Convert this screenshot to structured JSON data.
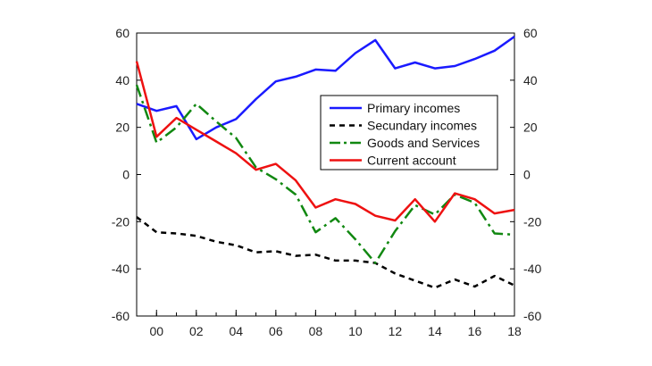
{
  "chart_data": {
    "type": "line",
    "title": "",
    "xlabel": "",
    "ylabel": "",
    "x": [
      1999,
      2000,
      2001,
      2002,
      2003,
      2004,
      2005,
      2006,
      2007,
      2008,
      2009,
      2010,
      2011,
      2012,
      2013,
      2014,
      2015,
      2016,
      2017,
      2018
    ],
    "x_tick_values": [
      2000,
      2002,
      2004,
      2006,
      2008,
      2010,
      2012,
      2014,
      2016,
      2018
    ],
    "x_tick_labels": [
      "00",
      "02",
      "04",
      "06",
      "08",
      "10",
      "12",
      "14",
      "16",
      "18"
    ],
    "xlim": [
      1999,
      2018
    ],
    "ylim": [
      -60,
      60
    ],
    "y_ticks": [
      -60,
      -40,
      -20,
      0,
      20,
      40,
      60
    ],
    "y_tick_labels": [
      "-60",
      "-40",
      "-20",
      "0",
      "20",
      "40",
      "60"
    ],
    "right_axis_ticks": [
      -60,
      -40,
      -20,
      0,
      20,
      40,
      60
    ],
    "right_axis_tick_labels": [
      "-60",
      "-40",
      "-20",
      "0",
      "20",
      "40",
      "60"
    ],
    "grid": false,
    "legend_position": "center-right",
    "series": [
      {
        "name": "Primary incomes",
        "color": "#1a1aff",
        "dash": "solid",
        "values": [
          30,
          27,
          29,
          15,
          20,
          23.5,
          32,
          39.5,
          41.5,
          44.5,
          44,
          51.5,
          57,
          45,
          47.5,
          45,
          46,
          49,
          52.5,
          58.5
        ]
      },
      {
        "name": "Secundary incomes",
        "color": "#000000",
        "dash": "short-dash",
        "values": [
          -18,
          -24.5,
          -25,
          -26,
          -28.5,
          -30,
          -33,
          -32.5,
          -34.5,
          -34,
          -36.5,
          -36.5,
          -37.5,
          -42,
          -45,
          -48,
          -44.5,
          -47.5,
          -43,
          -47
        ]
      },
      {
        "name": "Goods and Services",
        "color": "#118811",
        "dash": "dash-dot",
        "values": [
          38,
          13.5,
          20,
          30,
          22.5,
          15.5,
          3,
          -2,
          -8.5,
          -24.5,
          -18.5,
          -27.5,
          -37.5,
          -24,
          -13,
          -17,
          -8.5,
          -12,
          -25,
          -25.5
        ]
      },
      {
        "name": "Current account",
        "color": "#ee1111",
        "dash": "solid",
        "values": [
          48,
          16,
          24,
          19,
          14,
          9,
          2,
          4.5,
          -2.5,
          -14,
          -10.5,
          -12.5,
          -17.5,
          -19.5,
          -10.5,
          -20,
          -8,
          -10.5,
          -16.5,
          -15
        ]
      }
    ]
  }
}
